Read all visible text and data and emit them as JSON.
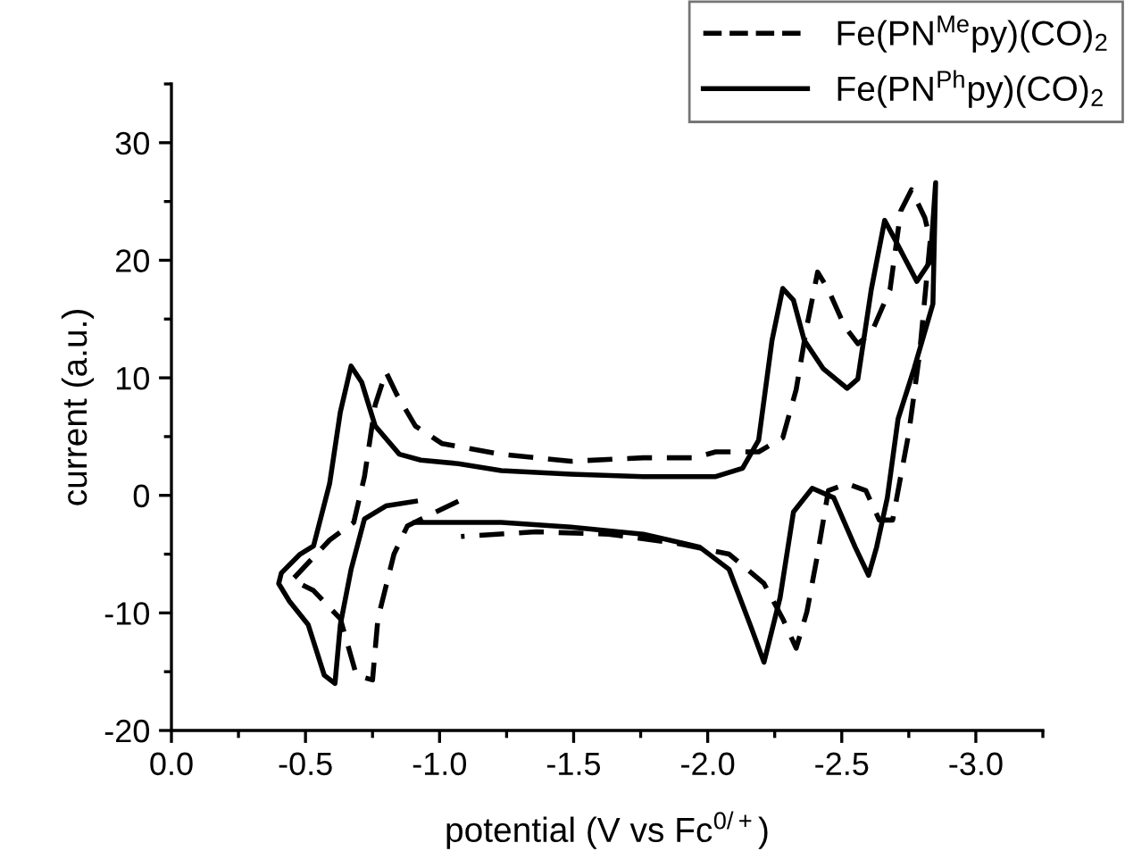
{
  "chart_data": {
    "type": "line",
    "xlabel": "potential (V vs Fc$^{0/+}$)",
    "ylabel": "current (a.u.)",
    "xlim": [
      0.0,
      -3.25
    ],
    "ylim": [
      -20,
      35
    ],
    "xticks": [
      {
        "value": 0.0,
        "label": "0.0"
      },
      {
        "value": -0.25,
        "label": null
      },
      {
        "value": -0.5,
        "label": "-0.5"
      },
      {
        "value": -0.75,
        "label": null
      },
      {
        "value": -1.0,
        "label": "-1.0"
      },
      {
        "value": -1.25,
        "label": null
      },
      {
        "value": -1.5,
        "label": "-1.5"
      },
      {
        "value": -1.75,
        "label": null
      },
      {
        "value": -2.0,
        "label": "-2.0"
      },
      {
        "value": -2.25,
        "label": null
      },
      {
        "value": -2.5,
        "label": "-2.5"
      },
      {
        "value": -2.75,
        "label": null
      },
      {
        "value": -3.0,
        "label": "-3.0"
      },
      {
        "value": -3.25,
        "label": null
      }
    ],
    "yticks": [
      -20,
      {
        "value": -15,
        "label": null
      },
      -10,
      {
        "value": -5,
        "label": null
      },
      0,
      {
        "value": 5,
        "label": null
      },
      10,
      {
        "value": 15,
        "label": null
      },
      20,
      {
        "value": 25,
        "label": null
      },
      30,
      {
        "value": 35,
        "label": null
      }
    ],
    "grid": false,
    "legend": "top right",
    "marker": "none",
    "series": [
      {
        "name": "Fe(PN$^{Me}$py)(CO)$_{2}$",
        "color": "#000000",
        "line_style": "dashed",
        "x": [
          -1.07,
          -0.96,
          -0.88,
          -0.83,
          -0.77,
          -0.75,
          -0.69,
          -0.63,
          -0.53,
          -0.45,
          -0.59,
          -0.68,
          -0.72,
          -0.76,
          -0.8,
          -0.84,
          -0.91,
          -1.01,
          -1.23,
          -1.49,
          -1.76,
          -1.95,
          -2.03,
          -2.19,
          -2.28,
          -2.33,
          -2.37,
          -2.41,
          -2.45,
          -2.51,
          -2.56,
          -2.61,
          -2.68,
          -2.72,
          -2.76,
          -2.81,
          -2.83,
          -2.79,
          -2.75,
          -2.71,
          -2.69,
          -2.64,
          -2.59,
          -2.52,
          -2.45,
          -2.41,
          -2.37,
          -2.33,
          -2.28,
          -2.21,
          -2.08,
          -1.89,
          -1.63,
          -1.36,
          -1.08
        ],
        "values": [
          -0.5,
          -1.7,
          -2.6,
          -5,
          -10.5,
          -15.7,
          -15.3,
          -10.5,
          -8.1,
          -7.2,
          -3.8,
          -2.3,
          1.6,
          7.7,
          10.5,
          8.6,
          5.9,
          4.4,
          3.5,
          2.9,
          3.2,
          3.2,
          3.7,
          3.7,
          4.9,
          9.0,
          14.4,
          19.0,
          17.5,
          14.4,
          12.9,
          13.8,
          17.5,
          24.2,
          26.0,
          23.6,
          21.7,
          12.0,
          5.3,
          0.4,
          -2.1,
          -2.1,
          0.4,
          1.0,
          0.4,
          -5,
          -9.9,
          -13,
          -10.5,
          -7.5,
          -5.0,
          -4.1,
          -3.3,
          -3.1,
          -3.5
        ]
      },
      {
        "name": "Fe(PN$^{Ph}$py)(CO)$_{2}$",
        "color": "#000000",
        "line_style": "solid",
        "x": [
          -0.91,
          -0.8,
          -0.72,
          -0.67,
          -0.63,
          -0.61,
          -0.57,
          -0.51,
          -0.44,
          -0.4,
          -0.41,
          -0.48,
          -0.53,
          -0.59,
          -0.63,
          -0.67,
          -0.71,
          -0.76,
          -0.85,
          -0.93,
          -1.07,
          -1.23,
          -1.49,
          -1.76,
          -2.03,
          -2.13,
          -2.19,
          -2.24,
          -2.28,
          -2.32,
          -2.36,
          -2.43,
          -2.52,
          -2.56,
          -2.61,
          -2.66,
          -2.7,
          -2.78,
          -2.83,
          -2.85,
          -2.84,
          -2.77,
          -2.71,
          -2.67,
          -2.63,
          -2.6,
          -2.55,
          -2.47,
          -2.39,
          -2.32,
          -2.27,
          -2.21,
          -2.16,
          -2.08,
          -1.97,
          -1.76,
          -1.49,
          -1.23,
          -0.91
        ],
        "values": [
          -0.5,
          -0.9,
          -2,
          -6.3,
          -11,
          -16,
          -15.3,
          -11,
          -9,
          -7.5,
          -6.6,
          -5,
          -4.3,
          1,
          7.1,
          11,
          9.6,
          5.9,
          3.5,
          3.0,
          2.7,
          2.1,
          1.8,
          1.6,
          1.6,
          2.3,
          4.7,
          13.2,
          17.6,
          16.6,
          13.2,
          10.8,
          9.1,
          9.9,
          17.5,
          23.4,
          21.7,
          18.2,
          19.9,
          26.6,
          16.3,
          10.8,
          6.5,
          -0.2,
          -4.4,
          -6.8,
          -4.4,
          -0.2,
          0.6,
          -1.4,
          -8.7,
          -14.2,
          -11.1,
          -6.3,
          -4.4,
          -3.3,
          -2.7,
          -2.3,
          -2.3
        ]
      }
    ]
  }
}
